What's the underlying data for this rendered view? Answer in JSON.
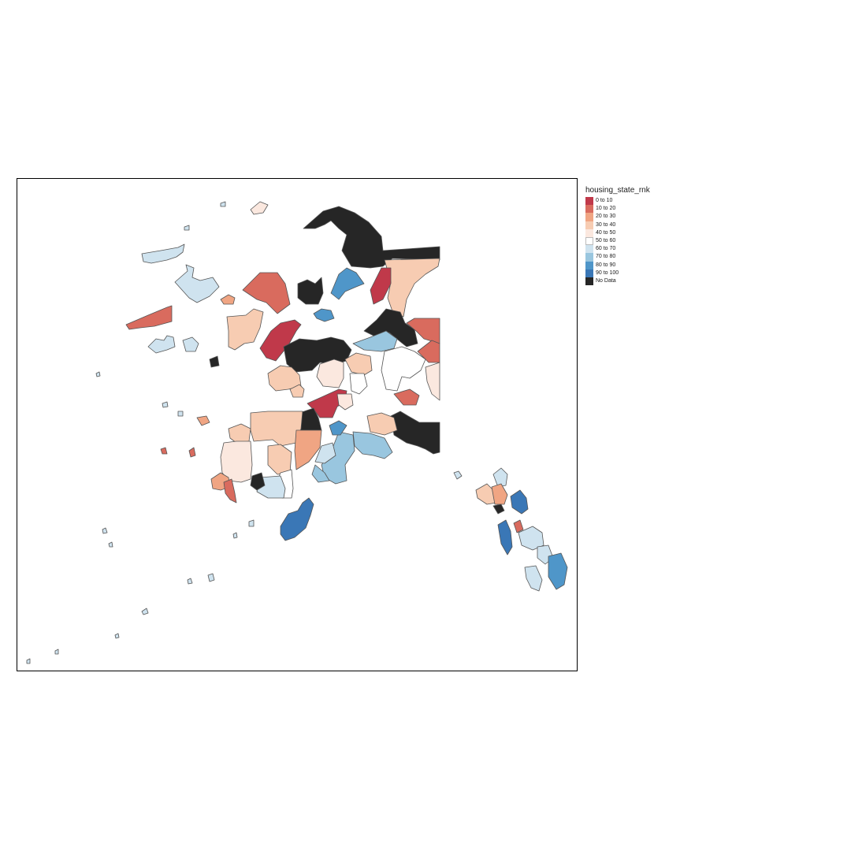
{
  "legend": {
    "title": "housing_state_rnk",
    "items": [
      {
        "label": "0 to 10",
        "color": "#c0394a"
      },
      {
        "label": "10 to 20",
        "color": "#d96b5e"
      },
      {
        "label": "20 to 30",
        "color": "#f0a583"
      },
      {
        "label": "30 to 40",
        "color": "#f7ccb2"
      },
      {
        "label": "40 to 50",
        "color": "#fbe8df"
      },
      {
        "label": "50 to 60",
        "color": "#ffffff"
      },
      {
        "label": "60 to 70",
        "color": "#cfe3ef"
      },
      {
        "label": "70 to 80",
        "color": "#99c6df"
      },
      {
        "label": "80 to 90",
        "color": "#4f96c9"
      },
      {
        "label": "90 to 100",
        "color": "#3a77b6"
      },
      {
        "label": "No Data",
        "color": "#262626"
      }
    ]
  }
}
